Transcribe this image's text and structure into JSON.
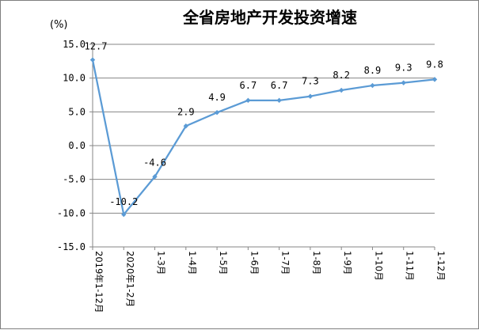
{
  "chart_data": {
    "type": "line",
    "title": "全省房地产开发投资增速",
    "unit_label": "(%)",
    "categories": [
      "2019年1-12月",
      "2020年1-2月",
      "1-3月",
      "1-4月",
      "1-5月",
      "1-6月",
      "1-7月",
      "1-8月",
      "1-9月",
      "1-10月",
      "1-11月",
      "1-12月"
    ],
    "series": [
      {
        "values": [
          12.7,
          -10.2,
          -4.6,
          2.9,
          4.9,
          6.7,
          6.7,
          7.3,
          8.2,
          8.9,
          9.3,
          9.8
        ],
        "data_labels": [
          "12.7",
          "-10.2",
          "-4.6",
          "2.9",
          "4.9",
          "6.7",
          "6.7",
          "7.3",
          "8.2",
          "8.9",
          "9.3",
          "9.8"
        ]
      }
    ],
    "ylim": [
      -15,
      15
    ],
    "yticks": [
      "15.0",
      "10.0",
      "5.0",
      "0.0",
      "-5.0",
      "-10.0",
      "-15.0"
    ],
    "grid": true,
    "legend": "none",
    "line_color": "#5b9bd5"
  }
}
